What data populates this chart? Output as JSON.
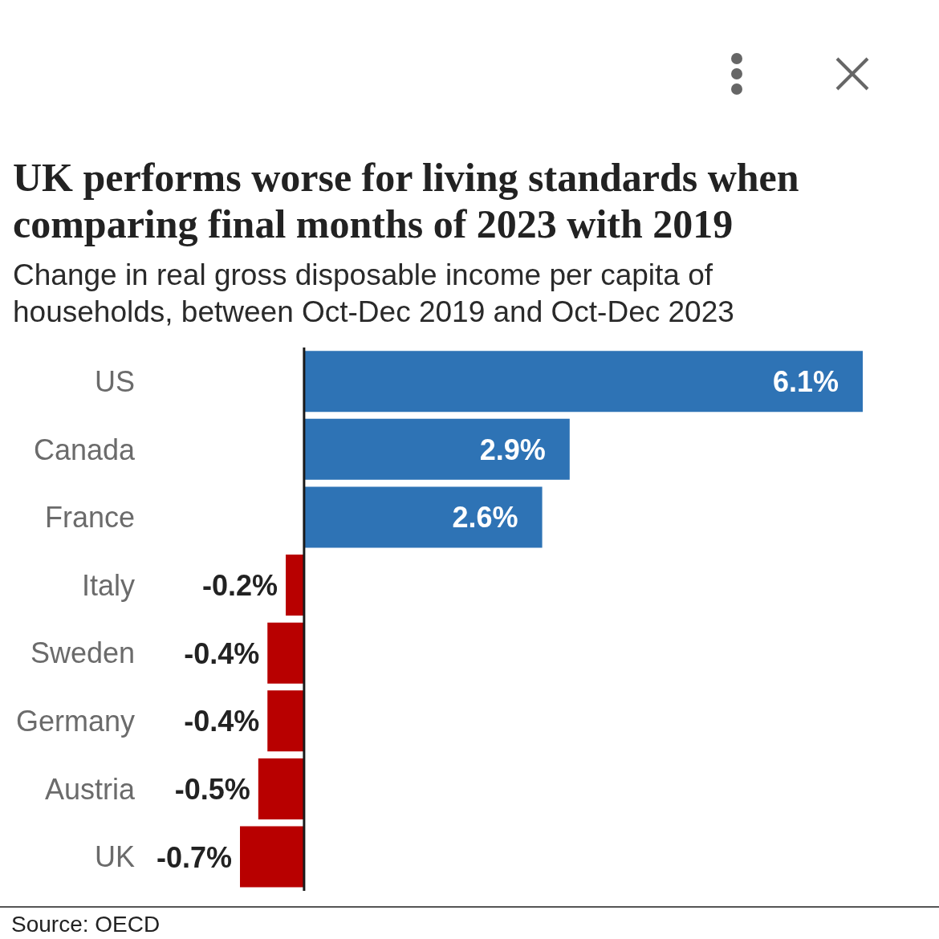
{
  "chart_data": {
    "type": "bar",
    "orientation": "horizontal",
    "title": "UK performs worse for living standards when comparing final months of 2023 with 2019",
    "subtitle": "Change in real gross disposable income per capita of households, between Oct-Dec 2019 and Oct-Dec 2023",
    "categories": [
      "US",
      "Canada",
      "France",
      "Italy",
      "Sweden",
      "Germany",
      "Austria",
      "UK"
    ],
    "values": [
      6.1,
      2.9,
      2.6,
      -0.2,
      -0.4,
      -0.4,
      -0.5,
      -0.7
    ],
    "colors": [
      "#2e73b5",
      "#2e73b5",
      "#2e73b5",
      "#b80000",
      "#b80000",
      "#b80000",
      "#b80000",
      "#b80000"
    ],
    "value_labels": [
      "6.1%",
      "2.9%",
      "2.6%",
      "-0.2%",
      "-0.4%",
      "-0.4%",
      "-0.5%",
      "-0.7%"
    ],
    "tick_labels": "y",
    "annotations": [
      "Source: OECD"
    ]
  }
}
